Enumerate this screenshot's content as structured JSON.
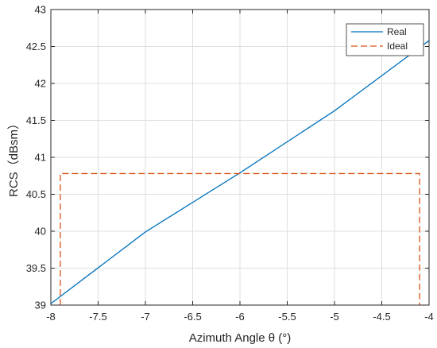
{
  "chart_data": {
    "type": "line",
    "title": "",
    "xlabel": "Azimuth Angle θ (°)",
    "ylabel": "RCS（dBsm）",
    "xlim": [
      -8,
      -4
    ],
    "ylim": [
      39,
      43
    ],
    "xticks": [
      -8,
      -7.5,
      -7,
      -6.5,
      -6,
      -5.5,
      -5,
      -4.5,
      -4
    ],
    "yticks": [
      39,
      39.5,
      40,
      40.5,
      41,
      41.5,
      42,
      42.5,
      43
    ],
    "grid": true,
    "legend_position": "top-right",
    "series": [
      {
        "name": "Real",
        "color": "#0072BD",
        "style": "solid",
        "x": [
          -8,
          -7,
          -6,
          -5,
          -4
        ],
        "y": [
          39.02,
          39.99,
          40.79,
          41.63,
          42.58
        ]
      },
      {
        "name": "Ideal",
        "color": "#D95319",
        "style": "dashed",
        "x": [
          -7.9,
          -7.9,
          -4.1,
          -4.1
        ],
        "y": [
          39,
          40.78,
          40.78,
          39
        ]
      }
    ]
  }
}
